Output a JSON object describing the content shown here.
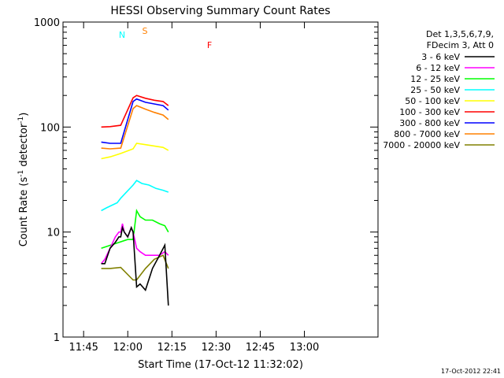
{
  "chart_data": {
    "type": "line",
    "title": "HESSI Observing Summary Count Rates",
    "xlabel": "Start Time (17-Oct-12 11:32:02)",
    "ylabel_main": "Count Rate (s",
    "ylabel_sup1": "-1",
    "ylabel_mid": " detector",
    "ylabel_sup2": "-1",
    "ylabel_end": ")",
    "yscale": "log",
    "ylim": [
      1,
      1000
    ],
    "xlim": [
      11.6333,
      13.4167
    ],
    "x_ticks": [
      {
        "value": 11.75,
        "label": "11:45"
      },
      {
        "value": 12.0,
        "label": "12:00"
      },
      {
        "value": 12.25,
        "label": "12:15"
      },
      {
        "value": 12.5,
        "label": "12:30"
      },
      {
        "value": 12.75,
        "label": "12:45"
      },
      {
        "value": 13.0,
        "label": "13:00"
      }
    ],
    "y_ticks": [
      {
        "value": 1,
        "label": "1"
      },
      {
        "value": 10,
        "label": "10"
      },
      {
        "value": 100,
        "label": "100"
      },
      {
        "value": 1000,
        "label": "1000"
      }
    ],
    "legend_header": [
      "Det 1,3,5,6,7,9,",
      "FDecim 3, Att 0"
    ],
    "legend_position": "right",
    "series": [
      {
        "name": "3 - 6 keV",
        "color": "#000000",
        "x": [
          11.85,
          11.87,
          11.9,
          11.93,
          11.95,
          11.96,
          11.97,
          11.98,
          12.0,
          12.02,
          12.03,
          12.05,
          12.07,
          12.1,
          12.14,
          12.18,
          12.21,
          12.23
        ],
        "y": [
          5,
          5,
          7,
          8,
          9,
          9,
          11,
          10,
          9,
          11,
          10,
          3,
          3.2,
          2.8,
          4.5,
          6,
          7.5,
          2
        ]
      },
      {
        "name": "6 - 12 keV",
        "color": "#ff00ff",
        "x": [
          11.85,
          11.87,
          11.9,
          11.93,
          11.95,
          11.96,
          11.97,
          11.98,
          12.0,
          12.02,
          12.03,
          12.05,
          12.07,
          12.1,
          12.14,
          12.18,
          12.21,
          12.23
        ],
        "y": [
          5,
          5.5,
          7,
          9,
          10,
          10,
          12,
          10,
          9,
          11,
          10,
          7,
          6.5,
          6,
          6,
          6,
          6.5,
          6
        ]
      },
      {
        "name": "12 - 25 keV",
        "color": "#00ff00",
        "x": [
          11.85,
          12.0,
          12.03,
          12.05,
          12.07,
          12.1,
          12.14,
          12.18,
          12.21,
          12.23
        ],
        "y": [
          7,
          8.5,
          8.5,
          16,
          14,
          13,
          13,
          12,
          11.5,
          10
        ]
      },
      {
        "name": "25 - 50 keV",
        "color": "#00ffff",
        "x": [
          11.85,
          11.88,
          11.91,
          11.94,
          11.96,
          12.03,
          12.05,
          12.08,
          12.12,
          12.16,
          12.2,
          12.23
        ],
        "y": [
          16,
          17,
          18,
          19,
          21,
          28,
          31,
          29,
          28,
          26,
          25,
          24
        ]
      },
      {
        "name": "50 - 100 keV",
        "color": "#ffff00",
        "x": [
          11.85,
          11.9,
          11.96,
          12.03,
          12.05,
          12.1,
          12.15,
          12.2,
          12.23
        ],
        "y": [
          50,
          52,
          56,
          62,
          70,
          68,
          66,
          64,
          60
        ]
      },
      {
        "name": "100 - 300 keV",
        "color": "#ff0000",
        "x": [
          11.85,
          11.9,
          11.96,
          12.03,
          12.05,
          12.1,
          12.15,
          12.2,
          12.23
        ],
        "y": [
          100,
          101,
          104,
          190,
          200,
          188,
          180,
          175,
          160
        ]
      },
      {
        "name": "300 - 800 keV",
        "color": "#0000ff",
        "x": [
          11.85,
          11.9,
          11.96,
          12.03,
          12.05,
          12.1,
          12.15,
          12.2,
          12.23
        ],
        "y": [
          72,
          70,
          70,
          175,
          185,
          172,
          166,
          160,
          145
        ]
      },
      {
        "name": "800 - 7000 keV",
        "color": "#ff8000",
        "x": [
          11.85,
          11.9,
          11.96,
          12.03,
          12.05,
          12.1,
          12.15,
          12.2,
          12.23
        ],
        "y": [
          63,
          62,
          63,
          150,
          160,
          148,
          138,
          130,
          118
        ]
      },
      {
        "name": "7000 - 20000 keV",
        "color": "#808000",
        "x": [
          11.85,
          11.9,
          11.96,
          12.03,
          12.05,
          12.1,
          12.15,
          12.2,
          12.23
        ],
        "y": [
          4.5,
          4.5,
          4.6,
          3.5,
          3.5,
          4.5,
          5.5,
          6,
          4.5
        ]
      }
    ],
    "annotations": [
      {
        "label": "N",
        "color": "#00ffff"
      },
      {
        "label": "S",
        "color": "#ff8000"
      },
      {
        "label": "F",
        "color": "#ff0000"
      }
    ]
  },
  "footer_timestamp": "17-Oct-2012 22:41"
}
